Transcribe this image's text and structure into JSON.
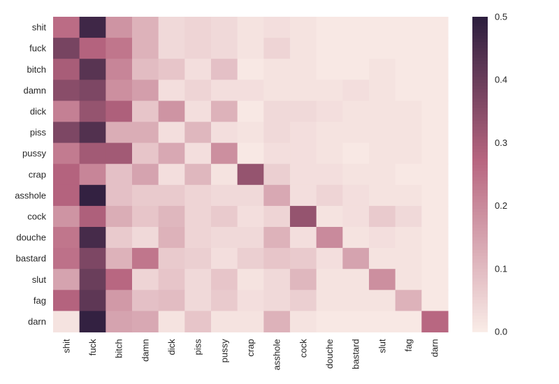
{
  "chart_data": {
    "type": "heatmap",
    "title": "",
    "xlabel": "",
    "ylabel": "",
    "x_categories": [
      "shit",
      "fuck",
      "bitch",
      "damn",
      "dick",
      "piss",
      "pussy",
      "crap",
      "asshole",
      "cock",
      "douche",
      "bastard",
      "slut",
      "fag",
      "darn"
    ],
    "y_categories": [
      "shit",
      "fuck",
      "bitch",
      "damn",
      "dick",
      "piss",
      "pussy",
      "crap",
      "asshole",
      "cock",
      "douche",
      "bastard",
      "slut",
      "fag",
      "darn"
    ],
    "values": [
      [
        0.26,
        0.47,
        0.18,
        0.12,
        0.04,
        0.05,
        0.04,
        0.02,
        0.03,
        0.02,
        0.01,
        0.01,
        0.01,
        0.01,
        0.01
      ],
      [
        0.38,
        0.28,
        0.24,
        0.12,
        0.04,
        0.05,
        0.04,
        0.02,
        0.05,
        0.02,
        0.01,
        0.01,
        0.01,
        0.01,
        0.01
      ],
      [
        0.3,
        0.43,
        0.21,
        0.1,
        0.08,
        0.03,
        0.09,
        0.01,
        0.02,
        0.02,
        0.01,
        0.01,
        0.02,
        0.01,
        0.01
      ],
      [
        0.35,
        0.37,
        0.19,
        0.16,
        0.03,
        0.05,
        0.03,
        0.03,
        0.02,
        0.02,
        0.02,
        0.03,
        0.02,
        0.01,
        0.01
      ],
      [
        0.22,
        0.33,
        0.29,
        0.08,
        0.18,
        0.03,
        0.12,
        0.01,
        0.04,
        0.04,
        0.03,
        0.02,
        0.02,
        0.02,
        0.01
      ],
      [
        0.37,
        0.44,
        0.13,
        0.13,
        0.03,
        0.11,
        0.03,
        0.02,
        0.04,
        0.03,
        0.02,
        0.02,
        0.02,
        0.02,
        0.01
      ],
      [
        0.23,
        0.31,
        0.31,
        0.08,
        0.14,
        0.03,
        0.19,
        0.01,
        0.03,
        0.03,
        0.02,
        0.01,
        0.02,
        0.02,
        0.01
      ],
      [
        0.28,
        0.21,
        0.09,
        0.15,
        0.03,
        0.11,
        0.02,
        0.33,
        0.06,
        0.03,
        0.03,
        0.02,
        0.02,
        0.01,
        0.01
      ],
      [
        0.28,
        0.49,
        0.09,
        0.07,
        0.07,
        0.05,
        0.04,
        0.04,
        0.14,
        0.03,
        0.05,
        0.03,
        0.02,
        0.02,
        0.01
      ],
      [
        0.18,
        0.29,
        0.13,
        0.08,
        0.11,
        0.05,
        0.07,
        0.03,
        0.05,
        0.33,
        0.02,
        0.03,
        0.07,
        0.04,
        0.01
      ],
      [
        0.24,
        0.46,
        0.07,
        0.04,
        0.12,
        0.05,
        0.04,
        0.04,
        0.12,
        0.03,
        0.2,
        0.02,
        0.03,
        0.02,
        0.01
      ],
      [
        0.25,
        0.37,
        0.12,
        0.24,
        0.07,
        0.06,
        0.03,
        0.06,
        0.08,
        0.07,
        0.03,
        0.15,
        0.02,
        0.02,
        0.01
      ],
      [
        0.15,
        0.4,
        0.27,
        0.05,
        0.08,
        0.04,
        0.08,
        0.02,
        0.04,
        0.11,
        0.02,
        0.02,
        0.19,
        0.02,
        0.01
      ],
      [
        0.28,
        0.42,
        0.17,
        0.09,
        0.1,
        0.04,
        0.07,
        0.03,
        0.04,
        0.06,
        0.02,
        0.02,
        0.02,
        0.12,
        0.01
      ],
      [
        0.02,
        0.49,
        0.15,
        0.14,
        0.02,
        0.08,
        0.02,
        0.02,
        0.12,
        0.02,
        0.01,
        0.01,
        0.01,
        0.01,
        0.27
      ]
    ],
    "color_range": [
      0.0,
      0.5
    ],
    "colorbar_ticks": [
      "0.0",
      "0.1",
      "0.2",
      "0.3",
      "0.4",
      "0.5"
    ],
    "colors": {
      "low": "#faede8",
      "mid": "#b7657f",
      "high": "#2d1e3e"
    },
    "grid": false,
    "legend": "colorbar-right"
  }
}
